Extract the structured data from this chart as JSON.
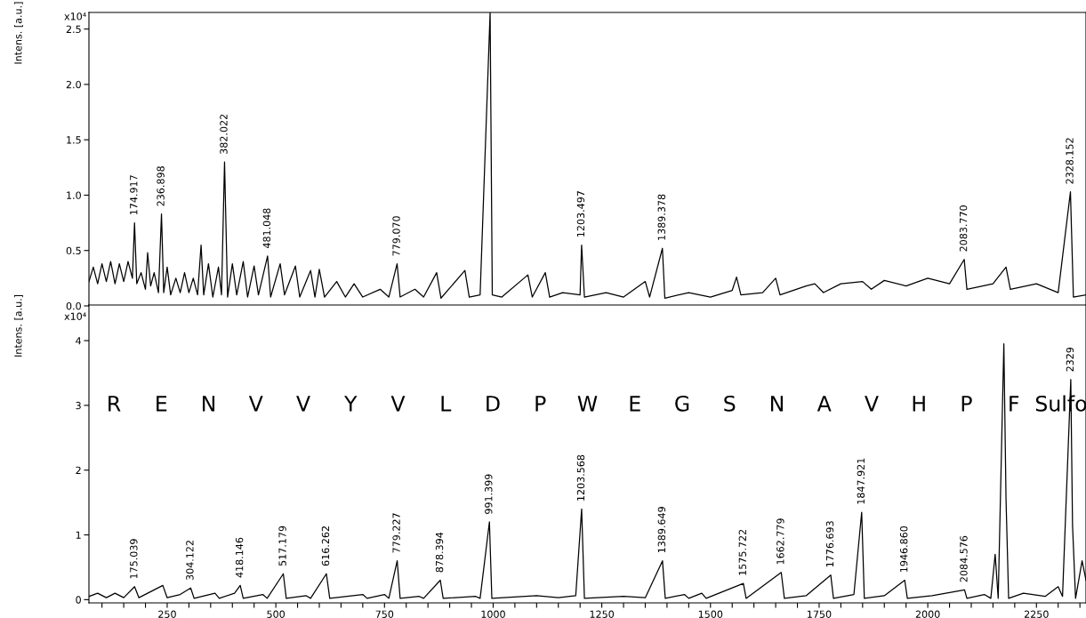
{
  "chart_data": [
    {
      "type": "line",
      "ylabel": "Intens. [a.u.]",
      "xlim": [
        70,
        2364
      ],
      "ylim": [
        0,
        2.65
      ],
      "tick_labels": "y",
      "grid": false,
      "legend": false,
      "marker": "none",
      "line_style": "solid",
      "xticks": [
        {
          "value": 100,
          "label": null
        },
        {
          "value": 250,
          "label": null
        },
        {
          "value": 500,
          "label": null
        },
        {
          "value": 750,
          "label": null
        },
        {
          "value": 1000,
          "label": null
        },
        {
          "value": 1250,
          "label": null
        },
        {
          "value": 1500,
          "label": null
        },
        {
          "value": 1750,
          "label": null
        },
        {
          "value": 2000,
          "label": null
        },
        {
          "value": 2250,
          "label": null
        }
      ],
      "yticks": [
        {
          "value": 0,
          "label": "0.0"
        },
        {
          "value": 0.5,
          "label": "0.5"
        },
        {
          "value": 1.0,
          "label": "1.0"
        },
        {
          "value": 1.5,
          "label": "1.5"
        },
        {
          "value": 2.0,
          "label": "2.0"
        },
        {
          "value": 2.5,
          "label": "2.5"
        }
      ],
      "annotations": [
        "x10⁴",
        {
          "text": "174.917",
          "x": 174.9,
          "y": 0.75
        },
        {
          "text": "236.898",
          "x": 236.9,
          "y": 0.83
        },
        {
          "text": "382.022",
          "x": 382.0,
          "y": 1.3
        },
        {
          "text": "481.048",
          "x": 481.0,
          "y": 0.45
        },
        {
          "text": "779.070",
          "x": 779.1,
          "y": 0.38
        },
        {
          "text": "1203.497",
          "x": 1203.5,
          "y": 0.55
        },
        {
          "text": "1389.378",
          "x": 1389.4,
          "y": 0.52
        },
        {
          "text": "2083.770",
          "x": 2083.8,
          "y": 0.42
        },
        {
          "text": "2328.152",
          "x": 2328.2,
          "y": 1.03
        }
      ],
      "series": [
        {
          "color": "#000000",
          "x": [
            70,
            80,
            90,
            100,
            110,
            120,
            130,
            140,
            150,
            160,
            170,
            174.9,
            180,
            190,
            200,
            205,
            212,
            220,
            230,
            236.9,
            242,
            250,
            258,
            270,
            280,
            290,
            300,
            310,
            320,
            328,
            334,
            345,
            355,
            368,
            375,
            382,
            389,
            400,
            410,
            425,
            435,
            450,
            460,
            481,
            488,
            510,
            520,
            545,
            555,
            580,
            590,
            600,
            612,
            640,
            660,
            680,
            700,
            740,
            760,
            779,
            786,
            820,
            840,
            870,
            880,
            935,
            945,
            970,
            993,
            998,
            1020,
            1080,
            1090,
            1120,
            1130,
            1160,
            1200,
            1203.5,
            1210,
            1260,
            1300,
            1350,
            1360,
            1389.4,
            1395,
            1450,
            1500,
            1550,
            1560,
            1570,
            1620,
            1650,
            1660,
            1720,
            1740,
            1760,
            1800,
            1850,
            1870,
            1900,
            1950,
            2000,
            2050,
            2083.8,
            2090,
            2150,
            2180,
            2190,
            2250,
            2300,
            2328.2,
            2335,
            2364
          ],
          "values": [
            0.22,
            0.35,
            0.2,
            0.38,
            0.22,
            0.4,
            0.2,
            0.38,
            0.22,
            0.4,
            0.25,
            0.75,
            0.2,
            0.3,
            0.15,
            0.48,
            0.18,
            0.3,
            0.12,
            0.83,
            0.12,
            0.35,
            0.1,
            0.25,
            0.12,
            0.3,
            0.12,
            0.25,
            0.1,
            0.55,
            0.1,
            0.38,
            0.08,
            0.35,
            0.1,
            1.3,
            0.08,
            0.38,
            0.1,
            0.4,
            0.08,
            0.36,
            0.1,
            0.45,
            0.08,
            0.38,
            0.1,
            0.36,
            0.08,
            0.32,
            0.08,
            0.33,
            0.08,
            0.22,
            0.08,
            0.2,
            0.08,
            0.15,
            0.08,
            0.38,
            0.08,
            0.15,
            0.08,
            0.3,
            0.07,
            0.32,
            0.08,
            0.1,
            2.65,
            0.1,
            0.08,
            0.28,
            0.08,
            0.3,
            0.08,
            0.12,
            0.1,
            0.55,
            0.08,
            0.12,
            0.08,
            0.22,
            0.08,
            0.52,
            0.07,
            0.12,
            0.08,
            0.14,
            0.26,
            0.1,
            0.12,
            0.25,
            0.1,
            0.18,
            0.2,
            0.12,
            0.2,
            0.22,
            0.15,
            0.23,
            0.18,
            0.25,
            0.2,
            0.42,
            0.15,
            0.2,
            0.35,
            0.15,
            0.2,
            0.12,
            1.03,
            0.08,
            0.1
          ]
        }
      ]
    },
    {
      "type": "line",
      "ylabel": "Intens. [a.u.]",
      "xlim": [
        70,
        2364
      ],
      "ylim": [
        -0.05,
        4.55
      ],
      "grid": false,
      "legend": false,
      "marker": "none",
      "line_style": "solid",
      "xticks": [
        {
          "value": 100,
          "label": null
        },
        {
          "value": 150,
          "label": null
        },
        {
          "value": 200,
          "label": null
        },
        250,
        {
          "value": 300,
          "label": null
        },
        {
          "value": 350,
          "label": null
        },
        {
          "value": 400,
          "label": null
        },
        {
          "value": 450,
          "label": null
        },
        500,
        {
          "value": 550,
          "label": null
        },
        {
          "value": 600,
          "label": null
        },
        {
          "value": 650,
          "label": null
        },
        {
          "value": 700,
          "label": null
        },
        750,
        {
          "value": 800,
          "label": null
        },
        {
          "value": 850,
          "label": null
        },
        {
          "value": 900,
          "label": null
        },
        {
          "value": 950,
          "label": null
        },
        1000,
        {
          "value": 1050,
          "label": null
        },
        {
          "value": 1100,
          "label": null
        },
        {
          "value": 1150,
          "label": null
        },
        {
          "value": 1200,
          "label": null
        },
        1250,
        {
          "value": 1300,
          "label": null
        },
        {
          "value": 1350,
          "label": null
        },
        {
          "value": 1400,
          "label": null
        },
        {
          "value": 1450,
          "label": null
        },
        1500,
        {
          "value": 1550,
          "label": null
        },
        {
          "value": 1600,
          "label": null
        },
        {
          "value": 1650,
          "label": null
        },
        {
          "value": 1700,
          "label": null
        },
        1750,
        {
          "value": 1800,
          "label": null
        },
        {
          "value": 1850,
          "label": null
        },
        {
          "value": 1900,
          "label": null
        },
        {
          "value": 1950,
          "label": null
        },
        2000,
        {
          "value": 2050,
          "label": null
        },
        {
          "value": 2100,
          "label": null
        },
        {
          "value": 2150,
          "label": null
        },
        {
          "value": 2200,
          "label": null
        },
        2250,
        {
          "value": 2300,
          "label": null
        },
        {
          "value": 2350,
          "label": null
        }
      ],
      "yticks": [
        0,
        1,
        2,
        3,
        4
      ],
      "annotations": [
        "x10⁴",
        "R",
        "E",
        "N",
        "V",
        "V",
        "Y",
        "V",
        "L",
        "D",
        "P",
        "W",
        "E",
        "G",
        "S",
        "N",
        "A",
        "V",
        "H",
        "P",
        "F",
        "Sulfo",
        {
          "text": "175.039",
          "x": 175.0,
          "y": 0.2
        },
        {
          "text": "304.122",
          "x": 304.1,
          "y": 0.18
        },
        {
          "text": "418.146",
          "x": 418.1,
          "y": 0.22
        },
        {
          "text": "517.179",
          "x": 517.2,
          "y": 0.4
        },
        {
          "text": "616.262",
          "x": 616.3,
          "y": 0.4
        },
        {
          "text": "779.227",
          "x": 779.2,
          "y": 0.6
        },
        {
          "text": "878.394",
          "x": 878.4,
          "y": 0.3
        },
        {
          "text": "991.399",
          "x": 991.4,
          "y": 1.2
        },
        {
          "text": "1203.568",
          "x": 1203.6,
          "y": 1.4
        },
        {
          "text": "1389.649",
          "x": 1389.6,
          "y": 0.6
        },
        {
          "text": "1575.722",
          "x": 1575.7,
          "y": 0.25
        },
        {
          "text": "1662.779",
          "x": 1662.8,
          "y": 0.42
        },
        {
          "text": "1776.693",
          "x": 1776.7,
          "y": 0.38
        },
        {
          "text": "1847.921",
          "x": 1847.9,
          "y": 1.35
        },
        {
          "text": "1946.860",
          "x": 1946.9,
          "y": 0.3
        },
        {
          "text": "2084.576",
          "x": 2084.6,
          "y": 0.15
        },
        {
          "text": "2329",
          "x": 2329,
          "y": 3.4
        }
      ],
      "series": [
        {
          "color": "#000000",
          "x": [
            70,
            90,
            110,
            130,
            150,
            175,
            185,
            240,
            250,
            280,
            304.1,
            312,
            360,
            370,
            405,
            418.1,
            425,
            470,
            480,
            517.2,
            524,
            570,
            580,
            616.3,
            624,
            700,
            710,
            750,
            760,
            779.2,
            786,
            830,
            840,
            878.4,
            885,
            960,
            970,
            991.4,
            997,
            1100,
            1150,
            1190,
            1203.6,
            1210,
            1300,
            1350,
            1389.6,
            1396,
            1440,
            1450,
            1480,
            1490,
            1575.7,
            1582,
            1662.8,
            1670,
            1720,
            1776.7,
            1783,
            1830,
            1847.9,
            1854,
            1900,
            1946.9,
            1953,
            2010,
            2084.6,
            2090,
            2130,
            2145,
            2155,
            2162,
            2175,
            2180,
            2186,
            2220,
            2270,
            2300,
            2310,
            2329,
            2333,
            2340,
            2355,
            2364
          ],
          "values": [
            0.05,
            0.1,
            0.03,
            0.1,
            0.03,
            0.2,
            0.03,
            0.22,
            0.03,
            0.08,
            0.18,
            0.02,
            0.1,
            0.02,
            0.1,
            0.22,
            0.02,
            0.08,
            0.02,
            0.4,
            0.02,
            0.06,
            0.02,
            0.4,
            0.02,
            0.08,
            0.02,
            0.08,
            0.02,
            0.6,
            0.02,
            0.05,
            0.02,
            0.3,
            0.02,
            0.05,
            0.02,
            1.2,
            0.02,
            0.06,
            0.03,
            0.06,
            1.4,
            0.02,
            0.05,
            0.03,
            0.6,
            0.02,
            0.08,
            0.02,
            0.1,
            0.02,
            0.25,
            0.02,
            0.42,
            0.02,
            0.06,
            0.38,
            0.02,
            0.08,
            1.35,
            0.02,
            0.06,
            0.3,
            0.02,
            0.06,
            0.15,
            0.02,
            0.08,
            0.02,
            0.7,
            0.02,
            3.95,
            1.55,
            0.02,
            0.1,
            0.05,
            0.2,
            0.05,
            3.4,
            1.15,
            0.02,
            0.6,
            0.3
          ]
        }
      ]
    }
  ]
}
